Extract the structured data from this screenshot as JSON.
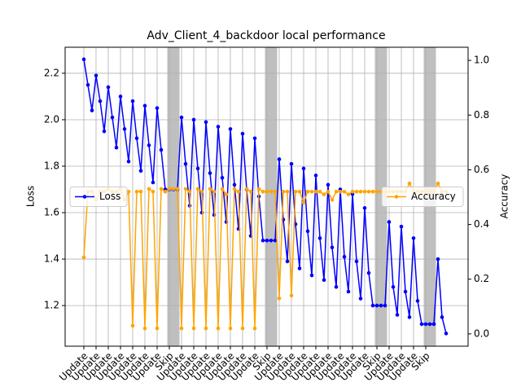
{
  "chart_data": {
    "type": "line",
    "title": "Adv_Client_4_backdoor local performance",
    "ylabel": "Loss",
    "y2label": "Accuracy",
    "x": [
      0,
      1,
      2,
      3,
      4,
      5,
      6,
      7,
      8,
      9,
      10,
      11,
      12,
      13,
      14,
      15,
      16,
      17,
      18,
      19,
      20,
      21,
      22,
      23,
      24,
      25,
      26,
      27,
      28,
      29,
      30,
      31,
      32,
      33,
      34,
      35,
      36,
      37,
      38,
      39,
      40,
      41,
      42,
      43,
      44,
      45,
      46,
      47,
      48,
      49,
      50,
      51,
      52,
      53,
      54,
      55,
      56,
      57,
      58,
      59,
      60,
      61,
      62,
      63,
      64,
      65,
      66,
      67,
      68,
      69,
      70,
      71,
      72,
      73,
      74,
      75,
      76,
      77,
      78,
      79,
      80,
      81,
      82,
      83,
      84,
      85,
      86,
      87,
      88,
      89
    ],
    "series": [
      {
        "name": "Loss",
        "color": "#0000ff",
        "legend_loc": "center left",
        "values": [
          2.26,
          2.15,
          2.04,
          2.19,
          2.08,
          1.95,
          2.14,
          2.01,
          1.88,
          2.1,
          1.96,
          1.82,
          2.08,
          1.92,
          1.78,
          2.06,
          1.89,
          1.73,
          2.05,
          1.87,
          1.7,
          1.7,
          1.7,
          1.7,
          2.01,
          1.81,
          1.63,
          2.0,
          1.79,
          1.6,
          1.99,
          1.77,
          1.59,
          1.97,
          1.75,
          1.56,
          1.96,
          1.72,
          1.53,
          1.94,
          1.7,
          1.5,
          1.92,
          1.67,
          1.48,
          1.48,
          1.48,
          1.48,
          1.83,
          1.57,
          1.39,
          1.81,
          1.55,
          1.36,
          1.79,
          1.52,
          1.33,
          1.76,
          1.49,
          1.31,
          1.72,
          1.45,
          1.28,
          1.7,
          1.41,
          1.26,
          1.68,
          1.39,
          1.23,
          1.62,
          1.34,
          1.2,
          1.2,
          1.2,
          1.2,
          1.56,
          1.28,
          1.16,
          1.54,
          1.26,
          1.15,
          1.49,
          1.22,
          1.12,
          1.12,
          1.12,
          1.12,
          1.4,
          1.15,
          1.08
        ]
      },
      {
        "name": "Accuracy",
        "color": "#ffa500",
        "axis": "y2",
        "legend_loc": "center right",
        "values": [
          0.28,
          0.52,
          0.52,
          0.49,
          0.52,
          0.52,
          0.53,
          0.52,
          0.52,
          0.53,
          0.49,
          0.52,
          0.03,
          0.52,
          0.52,
          0.02,
          0.53,
          0.52,
          0.02,
          0.53,
          0.52,
          0.53,
          0.53,
          0.53,
          0.02,
          0.53,
          0.52,
          0.02,
          0.53,
          0.52,
          0.02,
          0.53,
          0.52,
          0.02,
          0.53,
          0.51,
          0.02,
          0.53,
          0.52,
          0.02,
          0.53,
          0.52,
          0.02,
          0.53,
          0.52,
          0.52,
          0.52,
          0.52,
          0.13,
          0.52,
          0.52,
          0.14,
          0.52,
          0.52,
          0.48,
          0.52,
          0.52,
          0.52,
          0.52,
          0.51,
          0.52,
          0.49,
          0.52,
          0.52,
          0.52,
          0.51,
          0.52,
          0.52,
          0.52,
          0.52,
          0.52,
          0.52,
          0.52,
          0.52,
          0.52,
          0.52,
          0.52,
          0.52,
          0.52,
          0.52,
          0.55,
          0.52,
          0.52,
          0.52,
          0.52,
          0.52,
          0.52,
          0.55,
          0.52,
          0.52
        ]
      }
    ],
    "skip_spans": [
      [
        20.5,
        23.5
      ],
      [
        44.5,
        47.5
      ],
      [
        71.5,
        74.5
      ],
      [
        83.5,
        86.5
      ]
    ],
    "skip_color": "#bfbfbf",
    "xlim": [
      -4.6,
      94.4
    ],
    "xticks": [
      {
        "value": 0,
        "label": "Update"
      },
      {
        "value": 3,
        "label": "Update"
      },
      {
        "value": 6,
        "label": "Update"
      },
      {
        "value": 9,
        "label": "Update"
      },
      {
        "value": 12,
        "label": "Update"
      },
      {
        "value": 15,
        "label": "Update"
      },
      {
        "value": 18,
        "label": "Update"
      },
      {
        "value": 21,
        "label": "Skip"
      },
      {
        "value": 24,
        "label": "Update"
      },
      {
        "value": 27,
        "label": "Update"
      },
      {
        "value": 30,
        "label": "Update"
      },
      {
        "value": 33,
        "label": "Update"
      },
      {
        "value": 36,
        "label": "Update"
      },
      {
        "value": 39,
        "label": "Update"
      },
      {
        "value": 42,
        "label": "Update"
      },
      {
        "value": 45,
        "label": "Skip"
      },
      {
        "value": 48,
        "label": "Update"
      },
      {
        "value": 51,
        "label": "Update"
      },
      {
        "value": 54,
        "label": "Update"
      },
      {
        "value": 57,
        "label": "Update"
      },
      {
        "value": 60,
        "label": "Update"
      },
      {
        "value": 63,
        "label": "Update"
      },
      {
        "value": 66,
        "label": "Update"
      },
      {
        "value": 69,
        "label": "Update"
      },
      {
        "value": 72,
        "label": "Skip"
      },
      {
        "value": 75,
        "label": "Update"
      },
      {
        "value": 78,
        "label": "Update"
      },
      {
        "value": 81,
        "label": "Update"
      },
      {
        "value": 84,
        "label": "Skip"
      }
    ],
    "ylim": [
      1.025,
      2.312
    ],
    "yticks": [
      1.2,
      1.4,
      1.6,
      1.8,
      {
        "value": 2,
        "label": "2.0"
      },
      2.2
    ],
    "y2lim": [
      -0.045,
      1.048
    ],
    "y2ticks": [
      {
        "value": 0,
        "label": "0.0"
      },
      0.2,
      0.4,
      0.6,
      0.8,
      {
        "value": 1,
        "label": "1.0"
      }
    ],
    "grid": true
  }
}
